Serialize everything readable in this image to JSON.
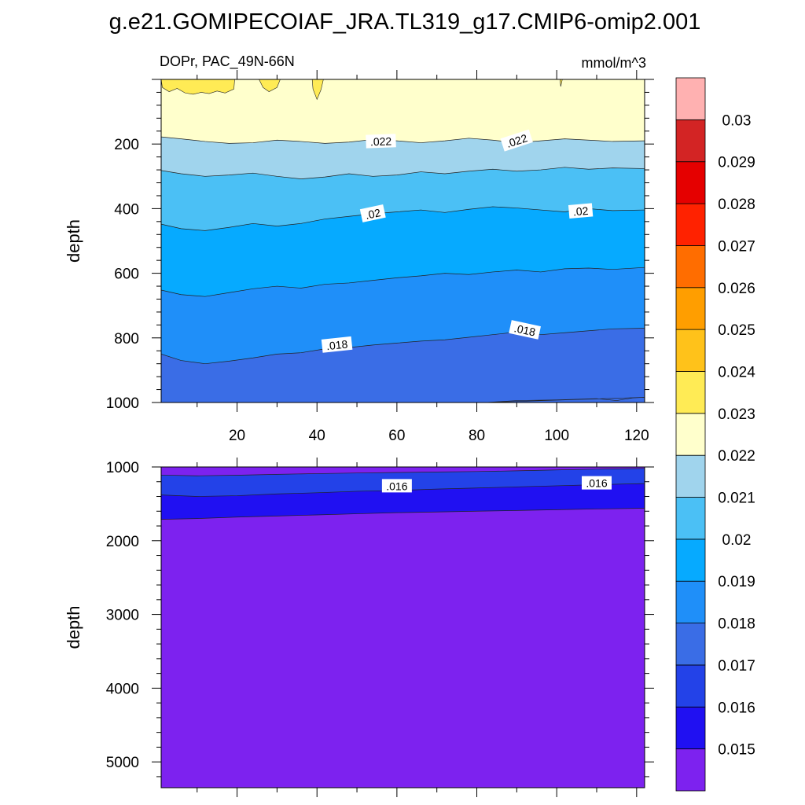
{
  "chart_data": {
    "type": "contour",
    "title": "g.e21.GOMIPECOIAF_JRA.TL319_g17.CMIP6-omip2.001",
    "subtitle_left": "DOPr, PAC_49N-66N",
    "subtitle_right": "mmol/m^3",
    "ylabel": "depth",
    "xlim": [
      1,
      122
    ],
    "x_ticks": [
      "20",
      "40",
      "60",
      "80",
      "100",
      "120"
    ],
    "panels": [
      {
        "name": "upper",
        "ylim": [
          0,
          1000
        ],
        "y_reversed": true,
        "y_ticks": [
          "200",
          "400",
          "600",
          "800",
          "1000"
        ],
        "regions": [
          {
            "value": 0.023,
            "color": "#ffeb55",
            "x": [
              1,
              1.3,
              3,
              5,
              7,
              9,
              11,
              13,
              15,
              17,
              19.2,
              19.4
            ],
            "depth": [
              0,
              25,
              38,
              28,
              42,
              46,
              40,
              44,
              36,
              42,
              30,
              0
            ]
          },
          {
            "value": 0.023,
            "color": "#ffeb55",
            "x": [
              25.5,
              26.5,
              28,
              30,
              30.8
            ],
            "depth": [
              0,
              25,
              38,
              25,
              0
            ]
          },
          {
            "value": 0.023,
            "color": "#ffeb55",
            "x": [
              38.8,
              39,
              40,
              41,
              41.6
            ],
            "depth": [
              0,
              30,
              62,
              32,
              0
            ]
          },
          {
            "value": 0.023,
            "color": "#ffeb55",
            "x": [
              100.8,
              101,
              101.4
            ],
            "depth": [
              0,
              22,
              0
            ]
          },
          {
            "value": 0.017,
            "color": "#3a6de6",
            "x": [
              82,
              90,
              100,
              110,
              115,
              119,
              122
            ],
            "depth": [
              1000,
              994,
              992,
              988,
              994,
              986,
              984
            ]
          }
        ],
        "contour_lines": [
          {
            "value": 0.022,
            "color_below": "#a0d4ed",
            "x": [
              1,
              6,
              12,
              18,
              24,
              30,
              36,
              42,
              48,
              54,
              60,
              66,
              72,
              78,
              84,
              90,
              96,
              102,
              108,
              114,
              122
            ],
            "depth": [
              178,
              184,
              192,
              198,
              196,
              188,
              192,
              198,
              194,
              186,
              190,
              196,
              190,
              182,
              188,
              196,
              190,
              184,
              188,
              192,
              190
            ]
          },
          {
            "value": 0.021,
            "color_below": "#4bc0f5",
            "x": [
              1,
              6,
              12,
              18,
              24,
              30,
              36,
              42,
              48,
              54,
              60,
              66,
              72,
              78,
              84,
              90,
              96,
              102,
              108,
              114,
              122
            ],
            "depth": [
              282,
              292,
              300,
              296,
              290,
              300,
              308,
              302,
              292,
              300,
              296,
              286,
              292,
              284,
              278,
              284,
              280,
              272,
              278,
              274,
              276
            ]
          },
          {
            "value": 0.02,
            "color_below": "#06aaff",
            "x": [
              1,
              6,
              12,
              18,
              24,
              30,
              36,
              42,
              48,
              54,
              60,
              66,
              72,
              78,
              84,
              90,
              96,
              102,
              108,
              114,
              122
            ],
            "depth": [
              448,
              462,
              468,
              458,
              446,
              454,
              446,
              432,
              424,
              416,
              410,
              404,
              412,
              402,
              394,
              398,
              404,
              410,
              400,
              406,
              404
            ]
          },
          {
            "value": 0.019,
            "color_below": "#1f8ff9",
            "x": [
              1,
              6,
              12,
              18,
              24,
              30,
              36,
              42,
              48,
              54,
              60,
              66,
              72,
              78,
              84,
              90,
              96,
              102,
              108,
              114,
              122
            ],
            "depth": [
              652,
              666,
              672,
              660,
              648,
              640,
              646,
              634,
              630,
              622,
              614,
              608,
              600,
              604,
              596,
              590,
              596,
              586,
              584,
              588,
              582
            ]
          },
          {
            "value": 0.018,
            "color_below": "#3a6de6",
            "x": [
              1,
              6,
              12,
              18,
              24,
              30,
              36,
              42,
              48,
              54,
              60,
              66,
              72,
              78,
              84,
              90,
              96,
              102,
              108,
              114,
              122
            ],
            "depth": [
              850,
              870,
              880,
              872,
              862,
              850,
              846,
              834,
              830,
              822,
              816,
              810,
              806,
              798,
              790,
              782,
              790,
              784,
              778,
              772,
              770
            ]
          }
        ],
        "contour_labels": [
          {
            "text": ".022",
            "x": 56,
            "depth": 192,
            "angle": -2
          },
          {
            "text": ".022",
            "x": 90,
            "depth": 190,
            "angle": -18
          },
          {
            "text": ".02",
            "x": 54,
            "depth": 416,
            "angle": -12
          },
          {
            "text": ".02",
            "x": 106,
            "depth": 408,
            "angle": -5
          },
          {
            "text": ".018",
            "x": 45,
            "depth": 822,
            "angle": -6
          },
          {
            "text": ".018",
            "x": 92,
            "depth": 776,
            "angle": 12
          }
        ]
      },
      {
        "name": "lower",
        "ylim": [
          1000,
          5350
        ],
        "y_reversed": true,
        "y_ticks": [
          "1000",
          "2000",
          "3000",
          "4000",
          "5000"
        ],
        "regions": [
          {
            "value": 0.017,
            "color": "#3a6de6",
            "x": [
              1,
              10,
              20,
              40,
              60,
              80,
              100,
              110,
              122,
              122,
              1
            ],
            "depth": [
              1000,
              1000,
              1000,
              1000,
              1000,
              1000,
              1000,
              1000,
              1000,
              1000,
              1000
            ]
          }
        ],
        "contour_lines": [
          {
            "value": 0.017,
            "color_below": "#2342e8",
            "x": [
              1,
              10,
              20,
              30,
              40,
              50,
              60,
              70,
              80,
              90,
              100,
              110,
              122
            ],
            "depth": [
              1110,
              1120,
              1112,
              1100,
              1090,
              1082,
              1075,
              1068,
              1062,
              1052,
              1040,
              1030,
              1020
            ]
          },
          {
            "value": 0.016,
            "color_below": "#2010f2",
            "x": [
              1,
              10,
              20,
              30,
              40,
              50,
              60,
              70,
              80,
              90,
              100,
              110,
              122
            ],
            "depth": [
              1380,
              1400,
              1390,
              1365,
              1350,
              1330,
              1318,
              1300,
              1285,
              1270,
              1255,
              1240,
              1225
            ]
          },
          {
            "value": 0.015,
            "color_below": "#7d22ef",
            "x": [
              1,
              10,
              20,
              30,
              40,
              50,
              60,
              70,
              80,
              90,
              100,
              110,
              122
            ],
            "depth": [
              1710,
              1700,
              1680,
              1665,
              1650,
              1635,
              1620,
              1610,
              1600,
              1590,
              1580,
              1570,
              1560
            ]
          }
        ],
        "contour_labels": [
          {
            "text": ".016",
            "x": 60,
            "depth": 1260,
            "angle": 0
          },
          {
            "text": ".016",
            "x": 110,
            "depth": 1220,
            "angle": 0
          }
        ]
      }
    ],
    "colorbar": {
      "colors": [
        "#7d22ef",
        "#2010f2",
        "#2342e8",
        "#3a6de6",
        "#1f8ff9",
        "#06aaff",
        "#4bc0f5",
        "#a0d4ed",
        "#ffffcc",
        "#ffeb55",
        "#ffc21a",
        "#ff9e00",
        "#ff6d00",
        "#ff2200",
        "#e50000",
        "#d32424",
        "#ffb1b1"
      ],
      "labels": [
        "0.015",
        "0.016",
        "0.017",
        "0.018",
        "0.019",
        "0.02",
        "0.021",
        "0.022",
        "0.023",
        "0.024",
        "0.025",
        "0.026",
        "0.027",
        "0.028",
        "0.029",
        "0.03"
      ]
    },
    "background_colors": {
      "upper": "#ffffcc",
      "lower": "#7d22ef"
    }
  }
}
